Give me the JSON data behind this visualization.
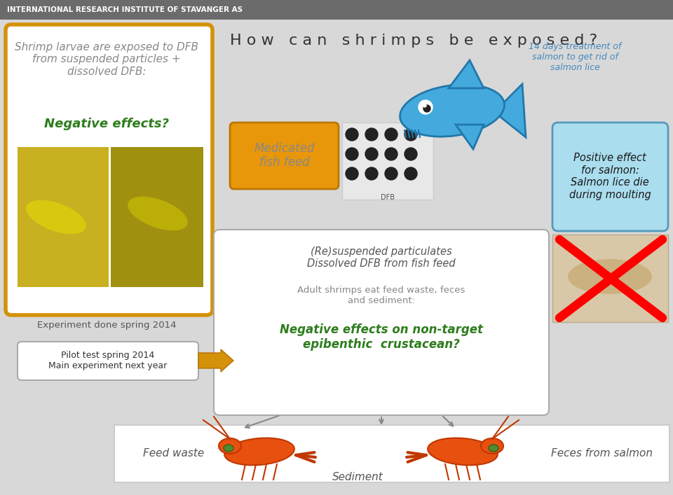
{
  "bg_color": "#d8d8d8",
  "header_bg": "#6b6b6b",
  "header_text": "INTERNATIONAL RESEARCH INSTITUTE OF STAVANGER AS",
  "header_text_color": "#ffffff",
  "title": "H o w   c a n   s h r i m p s   b e   e x p o s e d ?",
  "title_color": "#333333",
  "left_box_border": "#d4920a",
  "left_box_bg": "#ffffff",
  "left_title_color": "#888888",
  "left_title": "Shrimp larvae are exposed to DFB\nfrom suspended particles +\ndissolved DFB:",
  "left_neg_text": "Negative effects?",
  "left_neg_color": "#2e7d1e",
  "medicated_box_bg": "#e8960a",
  "medicated_text": "Medicated\nfish feed",
  "medicated_text_color": "#888888",
  "positive_box_bg": "#aaddee",
  "positive_box_border": "#5599bb",
  "positive_title": "Positive effect\nfor salmon:\nSalmon lice die\nduring moulting",
  "positive_title_color": "#1a1a1a",
  "salmon_note_text": "14 days treatment of\nsalmon to get rid of\nsalmon lice",
  "salmon_note_color": "#4488bb",
  "middle_box_bg": "#ffffff",
  "middle_box_border": "#aaaaaa",
  "resuspended_text": "(Re)suspended particulates\nDissolved DFB from fish feed",
  "resuspended_color": "#555555",
  "adult_shrimp_text": "Adult shrimps eat feed waste, feces\nand sediment:",
  "adult_shrimp_color": "#888888",
  "neg_effects_text": "Negative effects on non-target\nepibenthic  crustacean?",
  "neg_effects_color": "#2e7d1e",
  "exp_done_text": "Experiment done spring 2014",
  "exp_done_color": "#555555",
  "pilot_box_bg": "#ffffff",
  "pilot_box_border": "#aaaaaa",
  "pilot_text": "Pilot test spring 2014\nMain experiment next year",
  "pilot_text_color": "#333333",
  "feed_waste_text": "Feed waste",
  "sediment_text": "Sediment",
  "feces_text": "Feces from salmon",
  "bottom_label_color": "#555555",
  "bottom_bar_bg": "#ffffff",
  "bottom_bar_border": "#cccccc",
  "arrow_color": "#d4920a",
  "fish_color": "#44aadd",
  "fish_edge": "#2277aa"
}
